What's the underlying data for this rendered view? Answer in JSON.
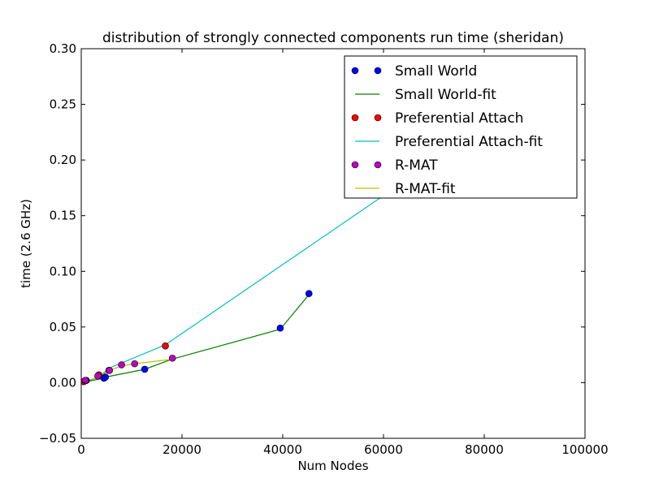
{
  "chart_data": {
    "type": "scatter",
    "title": "distribution of strongly connected components run time (sheridan)",
    "xlabel": "Num Nodes",
    "ylabel": "time (2.6 GHz)",
    "xlim": [
      0,
      100000
    ],
    "ylim": [
      -0.05,
      0.3
    ],
    "x_ticks": [
      0,
      20000,
      40000,
      60000,
      80000,
      100000
    ],
    "x_tick_labels": [
      "0",
      "20000",
      "40000",
      "60000",
      "80000",
      "100000"
    ],
    "y_ticks": [
      -0.05,
      0.0,
      0.05,
      0.1,
      0.15,
      0.2,
      0.25,
      0.3
    ],
    "y_tick_labels": [
      "−0.05",
      "0.00",
      "0.05",
      "0.10",
      "0.15",
      "0.20",
      "0.25",
      "0.30"
    ],
    "grid": false,
    "legend_position": "top-right",
    "series": [
      {
        "name": "Small World",
        "kind": "points",
        "color": "#0000ff",
        "x": [
          500,
          1000,
          4500,
          4800,
          12600,
          39500,
          45200
        ],
        "y": [
          0.001,
          0.002,
          0.004,
          0.005,
          0.012,
          0.049,
          0.08
        ]
      },
      {
        "name": "Small World-fit",
        "kind": "line",
        "color": "#008000",
        "x": [
          500,
          1000,
          4500,
          4800,
          12600,
          18000,
          39500,
          45200
        ],
        "y": [
          0.0005,
          0.001,
          0.004,
          0.005,
          0.012,
          0.021,
          0.048,
          0.079
        ]
      },
      {
        "name": "Preferential Attach",
        "kind": "points",
        "color": "#ff0000",
        "x": [
          500,
          3500,
          5500,
          16700
        ],
        "y": [
          0.001,
          0.007,
          0.011,
          0.033
        ]
      },
      {
        "name": "Preferential Attach-fit",
        "kind": "line",
        "color": "#00bfbf",
        "x": [
          500,
          3500,
          5500,
          16700,
          60000
        ],
        "y": [
          0.0005,
          0.005,
          0.013,
          0.034,
          0.168
        ]
      },
      {
        "name": "R-MAT",
        "kind": "points",
        "color": "#bf00bf",
        "x": [
          800,
          3300,
          5600,
          8000,
          10600,
          18100
        ],
        "y": [
          0.002,
          0.006,
          0.011,
          0.016,
          0.017,
          0.022
        ]
      },
      {
        "name": "R-MAT-fit",
        "kind": "line",
        "color": "#bfbf00",
        "x": [
          800,
          3300,
          5600,
          8000,
          10600,
          18100
        ],
        "y": [
          0.001,
          0.005,
          0.011,
          0.015,
          0.017,
          0.021
        ]
      }
    ]
  }
}
